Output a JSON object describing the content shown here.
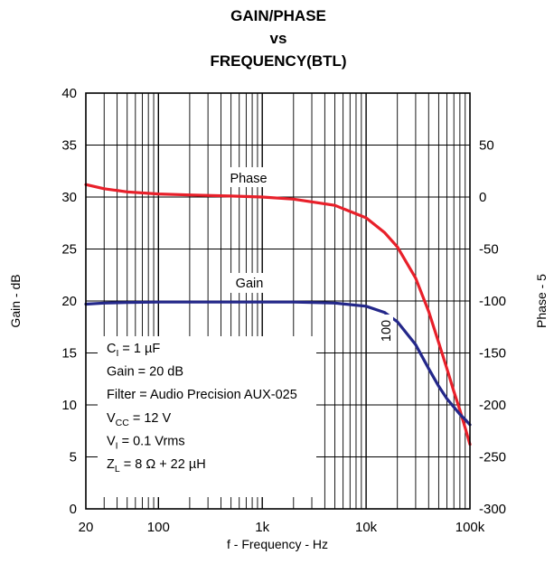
{
  "chart_data": {
    "type": "line",
    "title_lines": [
      "GAIN/PHASE",
      "vs",
      "FREQUENCY(BTL)"
    ],
    "xlabel": "f - Frequency - Hz",
    "ylabel": "Gain - dB",
    "y2label": "Phase - 5",
    "x_scale": "log",
    "xlim": [
      20,
      100000
    ],
    "ylim": [
      0,
      40
    ],
    "y2lim": [
      -300,
      100
    ],
    "grid": true,
    "x_ticks": [
      20,
      100,
      1000,
      10000,
      100000
    ],
    "x_tick_labels": [
      "20",
      "100",
      "1k",
      "10k",
      "100k"
    ],
    "y_ticks": [
      0,
      5,
      10,
      15,
      20,
      25,
      30,
      35,
      40
    ],
    "y_tick_labels": [
      "0",
      "5",
      "10",
      "15",
      "20",
      "25",
      "30",
      "35",
      "40"
    ],
    "y2_ticks": [
      -300,
      -250,
      -200,
      -150,
      -100,
      -50,
      0,
      50
    ],
    "y2_tick_labels": [
      "-300",
      "-250",
      "-200",
      "-150",
      "-100",
      "-50",
      "0",
      "50"
    ],
    "series": [
      {
        "name": "Phase",
        "axis": "right",
        "color": "#e8202a",
        "x": [
          20,
          30,
          50,
          100,
          200,
          500,
          1000,
          2000,
          5000,
          10000,
          15000,
          20000,
          30000,
          40000,
          50000,
          60000,
          70000,
          80000,
          90000,
          100000
        ],
        "y": [
          12,
          8,
          5,
          3,
          2,
          1,
          0,
          -2,
          -8,
          -20,
          -34,
          -48,
          -78,
          -110,
          -140,
          -165,
          -187,
          -205,
          -222,
          -238
        ]
      },
      {
        "name": "Gain",
        "axis": "left",
        "color": "#24288a",
        "x": [
          20,
          30,
          50,
          100,
          200,
          500,
          1000,
          2000,
          5000,
          10000,
          15000,
          20000,
          30000,
          40000,
          50000,
          60000,
          70000,
          80000,
          90000,
          100000
        ],
        "y": [
          19.7,
          19.8,
          19.85,
          19.9,
          19.9,
          19.9,
          19.9,
          19.9,
          19.8,
          19.5,
          18.9,
          18.0,
          15.8,
          13.5,
          11.8,
          10.6,
          9.8,
          9.1,
          8.6,
          8.1
        ]
      }
    ],
    "annotations": {
      "phase_label": "Phase",
      "gain_label": "Gain",
      "vertical_label": "100",
      "conditions": [
        {
          "main": "C",
          "sub": "I",
          "rest": " = 1 µF"
        },
        {
          "main": "Gain = 20 dB",
          "sub": "",
          "rest": ""
        },
        {
          "main": "Filter = Audio Precision AUX-025",
          "sub": "",
          "rest": ""
        },
        {
          "main": "V",
          "sub": "CC",
          "rest": " = 12 V"
        },
        {
          "main": "V",
          "sub": "I",
          "rest": " = 0.1 Vrms"
        },
        {
          "main": "Z",
          "sub": "L",
          "rest": " = 8 Ω + 22 µH"
        }
      ]
    }
  }
}
